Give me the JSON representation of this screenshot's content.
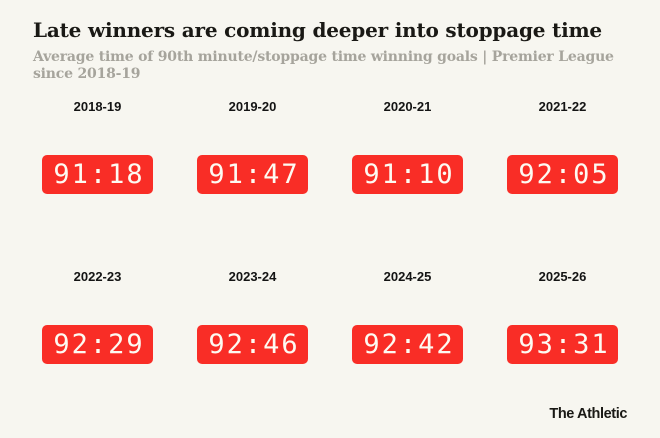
{
  "header": {
    "title": "Late winners are coming deeper into stoppage time",
    "subtitle": "Average time of 90th minute/stoppage time winning goals | Premier League since 2018-19"
  },
  "seasons": [
    {
      "label": "2018-19",
      "time": "91:18"
    },
    {
      "label": "2019-20",
      "time": "91:47"
    },
    {
      "label": "2020-21",
      "time": "91:10"
    },
    {
      "label": "2021-22",
      "time": "92:05"
    },
    {
      "label": "2022-23",
      "time": "92:29"
    },
    {
      "label": "2023-24",
      "time": "92:46"
    },
    {
      "label": "2024-25",
      "time": "92:42"
    },
    {
      "label": "2025-26",
      "time": "93:31"
    }
  ],
  "chart_data": {
    "type": "table",
    "title": "Late winners are coming deeper into stoppage time",
    "subtitle": "Average time of 90th minute/stoppage time winning goals | Premier League since 2018-19",
    "categories": [
      "2018-19",
      "2019-20",
      "2020-21",
      "2021-22",
      "2022-23",
      "2023-24",
      "2024-25",
      "2025-26"
    ],
    "values_mmss": [
      "91:18",
      "91:47",
      "91:10",
      "92:05",
      "92:29",
      "92:46",
      "92:42",
      "93:31"
    ],
    "values_total_seconds": [
      5478,
      5507,
      5470,
      5525,
      5549,
      5566,
      5562,
      5611
    ],
    "unit": "match minute : seconds",
    "layout": "2 rows x 4 columns of red digital-clock badges, season label above each clock",
    "legend": "none",
    "grid": "off"
  },
  "footer": {
    "brand": "The Athletic"
  },
  "colors": {
    "background": "#F7F6F0",
    "clock_red": "#F92D26",
    "clock_text": "#FDFAF2",
    "title_text": "#1A1915",
    "subtitle_gray": "#A6A49C",
    "label_text": "#141414"
  }
}
